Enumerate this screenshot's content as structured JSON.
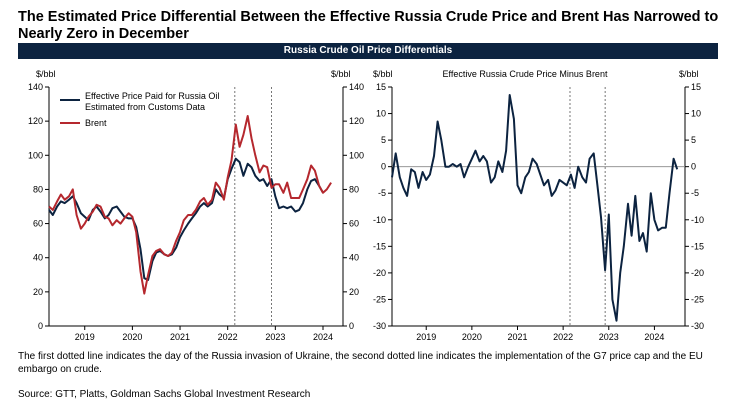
{
  "title": "The Estimated Price Differential Between the Effective Russia Crude Price and Brent Has Narrowed to Nearly Zero in December",
  "banner": "Russia Crude Oil Price Differentials",
  "footnote": "The first dotted line indicates the day of the Russia invasion of Ukraine, the second dotted line indicates the implementation of the G7 price cap and the EU embargo on crude.",
  "source": "Source: GTT, Platts, Goldman Sachs Global Investment Research",
  "colors": {
    "navy": "#0c2340",
    "red": "#b5282e"
  },
  "chart_data": [
    {
      "type": "line",
      "ylabel_left": "$/bbl",
      "ylabel_right": "$/bbl",
      "ylim": [
        0,
        140
      ],
      "yticks": [
        0,
        20,
        40,
        60,
        80,
        100,
        120,
        140
      ],
      "xlim": [
        2018.25,
        2024.42
      ],
      "xticks": [
        2019,
        2020,
        2021,
        2022,
        2023,
        2024
      ],
      "vlines": [
        2022.15,
        2022.92
      ],
      "series": [
        {
          "name": "Effective Price Paid for Russia Oil Estimated from Customs Data",
          "name_lines": [
            "Effective Price Paid for Russia Oil",
            "Estimated from Customs Data"
          ],
          "color": "#0c2340",
          "points": [
            [
              2018.25,
              68
            ],
            [
              2018.33,
              65
            ],
            [
              2018.42,
              70
            ],
            [
              2018.5,
              73
            ],
            [
              2018.58,
              72
            ],
            [
              2018.67,
              74
            ],
            [
              2018.75,
              76
            ],
            [
              2018.83,
              72
            ],
            [
              2018.92,
              66
            ],
            [
              2019.0,
              64
            ],
            [
              2019.08,
              62
            ],
            [
              2019.17,
              68
            ],
            [
              2019.25,
              70
            ],
            [
              2019.33,
              67
            ],
            [
              2019.42,
              63
            ],
            [
              2019.5,
              65
            ],
            [
              2019.58,
              69
            ],
            [
              2019.67,
              70
            ],
            [
              2019.75,
              67
            ],
            [
              2019.83,
              64
            ],
            [
              2019.92,
              63
            ],
            [
              2020.0,
              63
            ],
            [
              2020.08,
              58
            ],
            [
              2020.17,
              45
            ],
            [
              2020.25,
              28
            ],
            [
              2020.33,
              27
            ],
            [
              2020.42,
              38
            ],
            [
              2020.5,
              43
            ],
            [
              2020.58,
              44
            ],
            [
              2020.67,
              42
            ],
            [
              2020.75,
              41
            ],
            [
              2020.83,
              42
            ],
            [
              2020.92,
              46
            ],
            [
              2021.0,
              52
            ],
            [
              2021.08,
              56
            ],
            [
              2021.17,
              60
            ],
            [
              2021.25,
              63
            ],
            [
              2021.33,
              66
            ],
            [
              2021.42,
              70
            ],
            [
              2021.5,
              72
            ],
            [
              2021.58,
              70
            ],
            [
              2021.67,
              72
            ],
            [
              2021.75,
              80
            ],
            [
              2021.83,
              77
            ],
            [
              2021.92,
              75
            ],
            [
              2022.0,
              86
            ],
            [
              2022.08,
              92
            ],
            [
              2022.17,
              98
            ],
            [
              2022.25,
              96
            ],
            [
              2022.33,
              88
            ],
            [
              2022.42,
              95
            ],
            [
              2022.5,
              93
            ],
            [
              2022.58,
              88
            ],
            [
              2022.67,
              85
            ],
            [
              2022.75,
              86
            ],
            [
              2022.83,
              82
            ],
            [
              2022.92,
              86
            ],
            [
              2023.0,
              76
            ],
            [
              2023.08,
              69
            ],
            [
              2023.17,
              70
            ],
            [
              2023.25,
              69
            ],
            [
              2023.33,
              70
            ],
            [
              2023.42,
              67
            ],
            [
              2023.5,
              68
            ],
            [
              2023.58,
              72
            ],
            [
              2023.67,
              80
            ],
            [
              2023.75,
              85
            ],
            [
              2023.83,
              86
            ],
            [
              2023.92,
              82
            ],
            [
              2024.0,
              78
            ]
          ]
        },
        {
          "name": "Brent",
          "color": "#b5282e",
          "points": [
            [
              2018.25,
              70
            ],
            [
              2018.33,
              68
            ],
            [
              2018.42,
              73
            ],
            [
              2018.5,
              77
            ],
            [
              2018.58,
              74
            ],
            [
              2018.67,
              76
            ],
            [
              2018.75,
              80
            ],
            [
              2018.83,
              65
            ],
            [
              2018.92,
              57
            ],
            [
              2019.0,
              60
            ],
            [
              2019.08,
              64
            ],
            [
              2019.17,
              67
            ],
            [
              2019.25,
              71
            ],
            [
              2019.33,
              70
            ],
            [
              2019.42,
              64
            ],
            [
              2019.5,
              63
            ],
            [
              2019.58,
              59
            ],
            [
              2019.67,
              62
            ],
            [
              2019.75,
              60
            ],
            [
              2019.83,
              63
            ],
            [
              2019.92,
              66
            ],
            [
              2020.0,
              64
            ],
            [
              2020.08,
              55
            ],
            [
              2020.17,
              32
            ],
            [
              2020.25,
              19
            ],
            [
              2020.33,
              30
            ],
            [
              2020.42,
              41
            ],
            [
              2020.5,
              44
            ],
            [
              2020.58,
              45
            ],
            [
              2020.67,
              42
            ],
            [
              2020.75,
              41
            ],
            [
              2020.83,
              43
            ],
            [
              2020.92,
              50
            ],
            [
              2021.0,
              55
            ],
            [
              2021.08,
              62
            ],
            [
              2021.17,
              65
            ],
            [
              2021.25,
              65
            ],
            [
              2021.33,
              68
            ],
            [
              2021.42,
              73
            ],
            [
              2021.5,
              75
            ],
            [
              2021.58,
              71
            ],
            [
              2021.67,
              74
            ],
            [
              2021.75,
              84
            ],
            [
              2021.83,
              81
            ],
            [
              2021.92,
              74
            ],
            [
              2022.0,
              87
            ],
            [
              2022.08,
              97
            ],
            [
              2022.17,
              118
            ],
            [
              2022.25,
              105
            ],
            [
              2022.33,
              112
            ],
            [
              2022.42,
              123
            ],
            [
              2022.5,
              110
            ],
            [
              2022.58,
              100
            ],
            [
              2022.67,
              90
            ],
            [
              2022.75,
              94
            ],
            [
              2022.83,
              93
            ],
            [
              2022.92,
              81
            ],
            [
              2023.0,
              83
            ],
            [
              2023.08,
              83
            ],
            [
              2023.17,
              78
            ],
            [
              2023.25,
              84
            ],
            [
              2023.33,
              75
            ],
            [
              2023.42,
              75
            ],
            [
              2023.5,
              75
            ],
            [
              2023.58,
              80
            ],
            [
              2023.67,
              86
            ],
            [
              2023.75,
              94
            ],
            [
              2023.83,
              91
            ],
            [
              2023.92,
              82
            ],
            [
              2024.0,
              78
            ],
            [
              2024.08,
              80
            ],
            [
              2024.17,
              84
            ]
          ]
        }
      ]
    },
    {
      "type": "line",
      "title": "Effective Russia Crude Price Minus Brent",
      "ylabel_left": "$/bbl",
      "ylabel_right": "$/bbl",
      "ylim": [
        -30,
        15
      ],
      "yticks": [
        -30,
        -25,
        -20,
        -15,
        -10,
        -5,
        0,
        5,
        10,
        15
      ],
      "xlim": [
        2018.25,
        2024.67
      ],
      "xticks": [
        2019,
        2020,
        2021,
        2022,
        2023,
        2024
      ],
      "vlines": [
        2022.15,
        2022.92
      ],
      "series": [
        {
          "name": "Effective Russia Crude Price Minus Brent",
          "color": "#0c2340",
          "points": [
            [
              2018.25,
              -2
            ],
            [
              2018.33,
              2.5
            ],
            [
              2018.42,
              -2
            ],
            [
              2018.5,
              -4
            ],
            [
              2018.58,
              -5.5
            ],
            [
              2018.67,
              -0.5
            ],
            [
              2018.75,
              -1
            ],
            [
              2018.83,
              -4
            ],
            [
              2018.92,
              -1
            ],
            [
              2019.0,
              -2.5
            ],
            [
              2019.08,
              -1.5
            ],
            [
              2019.17,
              2
            ],
            [
              2019.25,
              8.5
            ],
            [
              2019.33,
              5
            ],
            [
              2019.42,
              0
            ],
            [
              2019.5,
              0
            ],
            [
              2019.58,
              0.5
            ],
            [
              2019.67,
              0
            ],
            [
              2019.75,
              0.5
            ],
            [
              2019.83,
              -2
            ],
            [
              2019.92,
              0
            ],
            [
              2020.0,
              1.5
            ],
            [
              2020.08,
              3
            ],
            [
              2020.17,
              1
            ],
            [
              2020.25,
              2
            ],
            [
              2020.33,
              1
            ],
            [
              2020.42,
              -3
            ],
            [
              2020.5,
              -2
            ],
            [
              2020.58,
              1
            ],
            [
              2020.67,
              -1
            ],
            [
              2020.75,
              3
            ],
            [
              2020.83,
              13.5
            ],
            [
              2020.92,
              9
            ],
            [
              2021.0,
              -3.5
            ],
            [
              2021.08,
              -5
            ],
            [
              2021.17,
              -2
            ],
            [
              2021.25,
              -1
            ],
            [
              2021.33,
              1.5
            ],
            [
              2021.42,
              0.5
            ],
            [
              2021.5,
              -1.5
            ],
            [
              2021.58,
              -3.5
            ],
            [
              2021.67,
              -2.5
            ],
            [
              2021.75,
              -5.5
            ],
            [
              2021.83,
              -4.5
            ],
            [
              2021.92,
              -2.5
            ],
            [
              2022.0,
              -3
            ],
            [
              2022.08,
              -3.5
            ],
            [
              2022.17,
              -1.5
            ],
            [
              2022.25,
              -4
            ],
            [
              2022.33,
              0
            ],
            [
              2022.42,
              -2
            ],
            [
              2022.5,
              -3
            ],
            [
              2022.58,
              1.5
            ],
            [
              2022.67,
              2.5
            ],
            [
              2022.75,
              -3.5
            ],
            [
              2022.83,
              -9.5
            ],
            [
              2022.92,
              -19.5
            ],
            [
              2023.0,
              -9
            ],
            [
              2023.08,
              -25
            ],
            [
              2023.17,
              -29
            ],
            [
              2023.25,
              -20
            ],
            [
              2023.33,
              -15
            ],
            [
              2023.42,
              -7
            ],
            [
              2023.5,
              -13
            ],
            [
              2023.58,
              -5.5
            ],
            [
              2023.67,
              -14
            ],
            [
              2023.75,
              -12.5
            ],
            [
              2023.83,
              -16
            ],
            [
              2023.92,
              -5
            ],
            [
              2024.0,
              -10
            ],
            [
              2024.08,
              -12
            ],
            [
              2024.17,
              -11.5
            ],
            [
              2024.25,
              -11.5
            ],
            [
              2024.33,
              -5
            ],
            [
              2024.42,
              1.5
            ],
            [
              2024.5,
              -0.5
            ]
          ]
        }
      ]
    }
  ]
}
